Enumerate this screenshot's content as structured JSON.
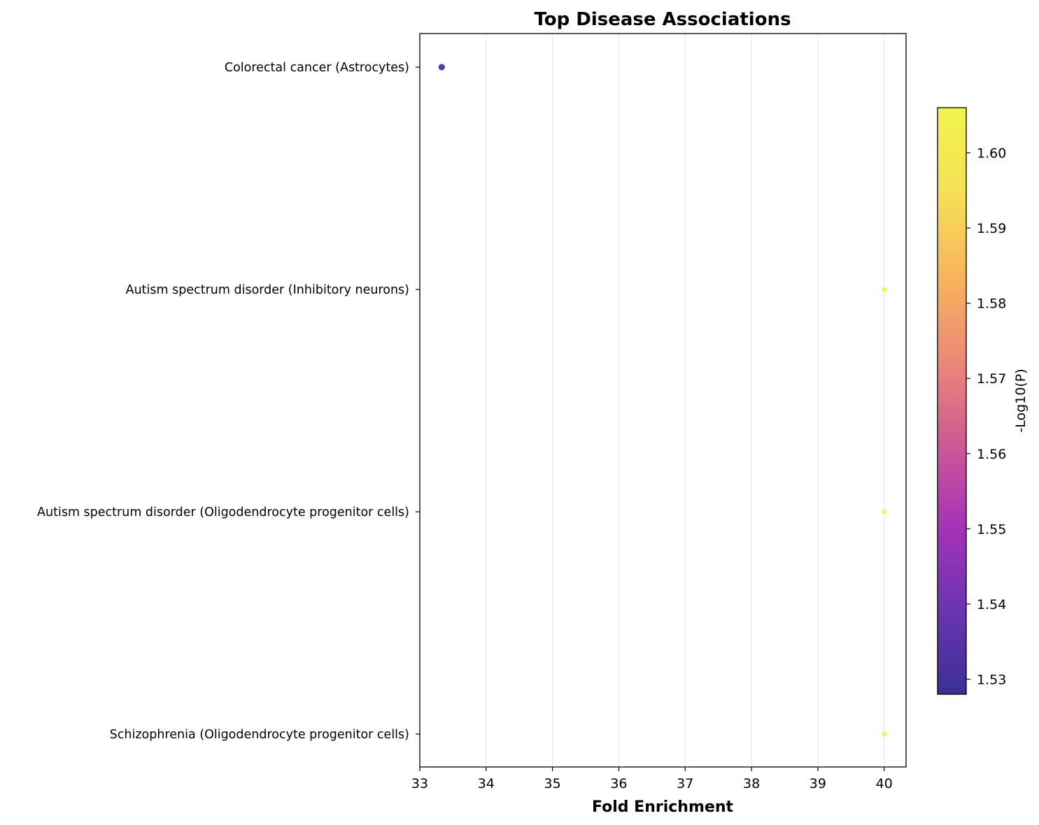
{
  "chart_data": {
    "type": "scatter",
    "title": "Top Disease Associations",
    "xlabel": "Fold Enrichment",
    "ylabel": "",
    "xlim": [
      33,
      40.33
    ],
    "x_ticks": [
      33,
      34,
      35,
      36,
      37,
      38,
      39,
      40
    ],
    "grid": "vertical",
    "categories": [
      "Colorectal cancer (Astrocytes)",
      "Autism spectrum disorder (Inhibitory neurons)",
      "Autism spectrum disorder (Oligodendrocyte progenitor cells)",
      "Schizophrenia (Oligodendrocyte progenitor cells)"
    ],
    "points": [
      {
        "category": "Colorectal cancer (Astrocytes)",
        "x": 33.33,
        "neg_log10_p": 1.528,
        "size": "medium"
      },
      {
        "category": "Autism spectrum disorder (Inhibitory neurons)",
        "x": 40.0,
        "neg_log10_p": 1.606,
        "size": "small"
      },
      {
        "category": "Autism spectrum disorder (Oligodendrocyte progenitor cells)",
        "x": 40.0,
        "neg_log10_p": 1.606,
        "size": "small"
      },
      {
        "category": "Schizophrenia (Oligodendrocyte progenitor cells)",
        "x": 40.0,
        "neg_log10_p": 1.606,
        "size": "small"
      }
    ],
    "colorbar": {
      "label": "-Log10(P)",
      "colormap": "plasma",
      "range": [
        1.528,
        1.606
      ],
      "ticks": [
        "1.53",
        "1.54",
        "1.55",
        "1.56",
        "1.57",
        "1.58",
        "1.59",
        "1.60"
      ],
      "colors": [
        "#3b2f96",
        "#6a35b0",
        "#a632b8",
        "#cf5a93",
        "#ec8a76",
        "#f8b55c",
        "#f5e154",
        "#f2f44e"
      ]
    }
  }
}
